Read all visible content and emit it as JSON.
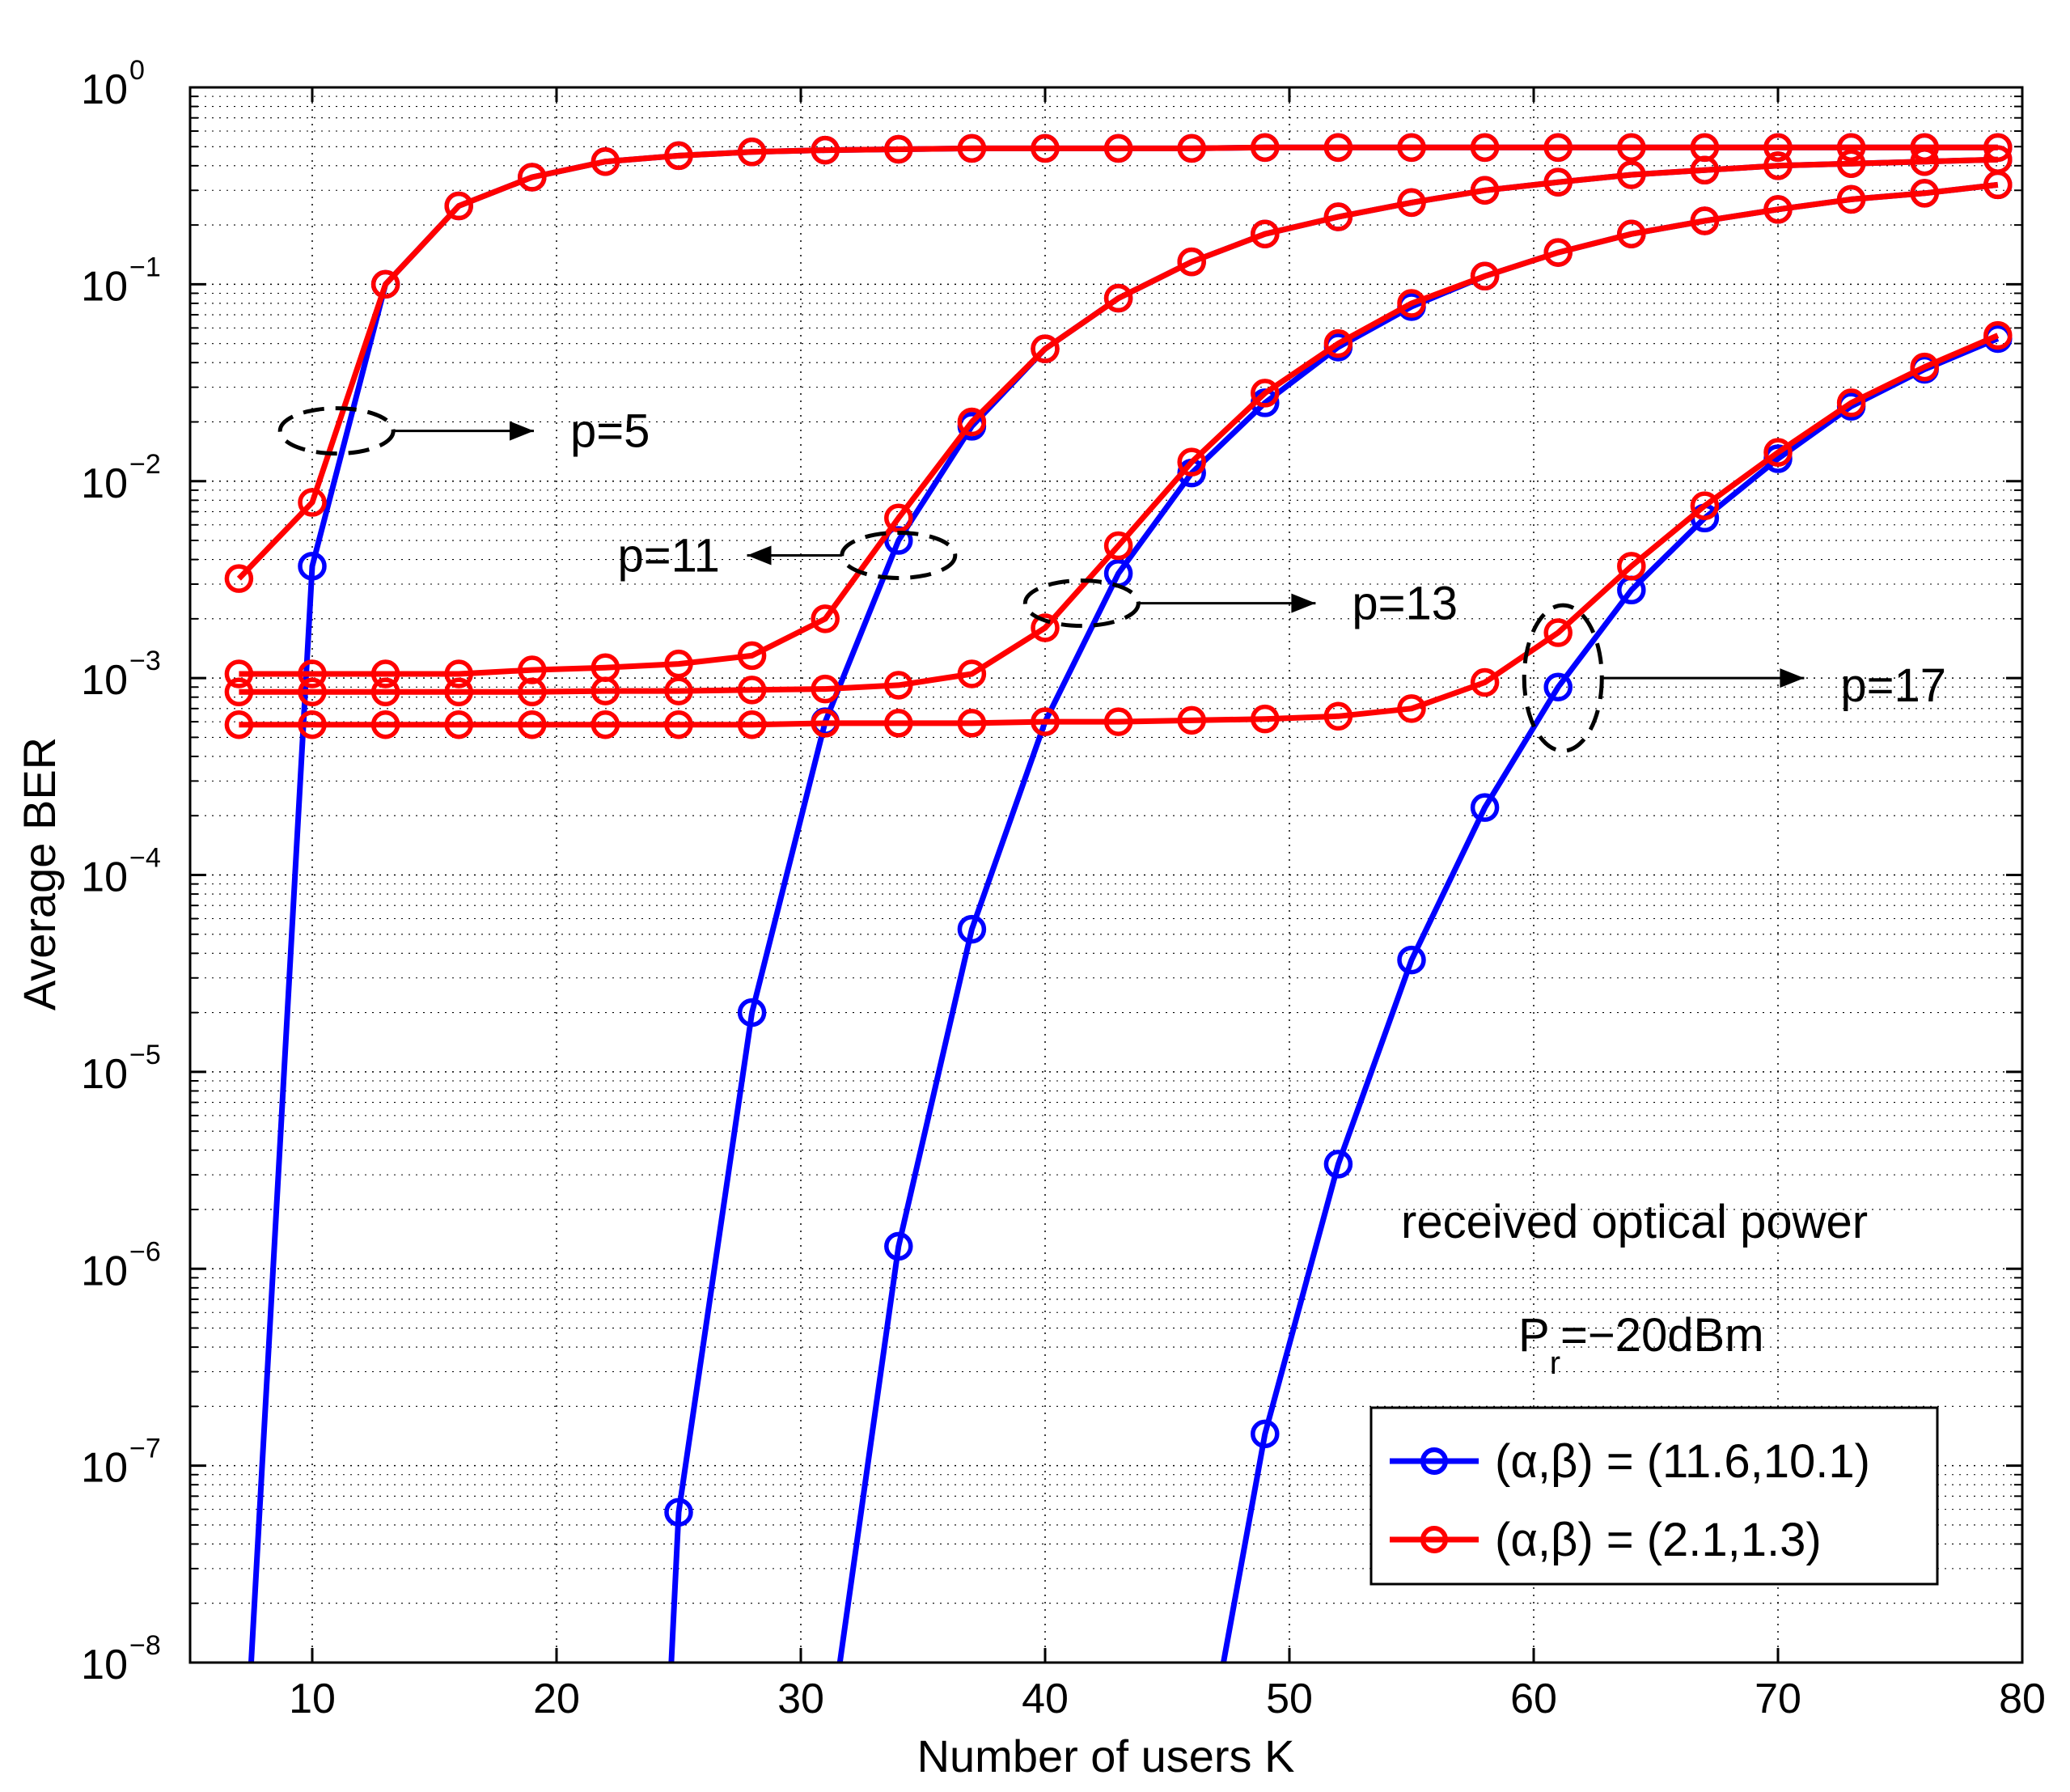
{
  "chart_data": {
    "type": "line",
    "title": "",
    "xlabel": "Number of users K",
    "ylabel": "Average BER",
    "xlim": [
      5,
      80
    ],
    "ylim": [
      1e-08,
      1
    ],
    "yscale": "log",
    "grid": true,
    "x_ticks": [
      10,
      20,
      30,
      40,
      50,
      60,
      70,
      80
    ],
    "y_ticks": [
      {
        "base": "10",
        "exp": "0",
        "value": 1
      },
      {
        "base": "10",
        "exp": "−1",
        "value": 0.1
      },
      {
        "base": "10",
        "exp": "−2",
        "value": 0.01
      },
      {
        "base": "10",
        "exp": "−3",
        "value": 0.001
      },
      {
        "base": "10",
        "exp": "−4",
        "value": 0.0001
      },
      {
        "base": "10",
        "exp": "−5",
        "value": 1e-05
      },
      {
        "base": "10",
        "exp": "−6",
        "value": 1e-06
      },
      {
        "base": "10",
        "exp": "−7",
        "value": 1e-07
      },
      {
        "base": "10",
        "exp": "−8",
        "value": 1e-08
      }
    ],
    "legend_position": "bottom-right",
    "series": [
      {
        "name": "(α,β) = (11.6,10.1)",
        "group": "p=5",
        "color": "#0000ff",
        "x": [
          7.5,
          10,
          13,
          16,
          19,
          22,
          25,
          28,
          31,
          34,
          37,
          40,
          43,
          46,
          49,
          52,
          55,
          58,
          61,
          64,
          67,
          70,
          73,
          76,
          79
        ],
        "y": [
          1e-08,
          0.0037,
          0.1,
          0.25,
          0.35,
          0.42,
          0.45,
          0.47,
          0.48,
          0.485,
          0.49,
          0.49,
          0.49,
          0.49,
          0.495,
          0.495,
          0.495,
          0.495,
          0.495,
          0.495,
          0.495,
          0.495,
          0.495,
          0.495,
          0.495
        ],
        "markers": [
          1,
          2,
          3,
          4,
          5,
          6,
          7,
          8,
          9,
          10,
          11,
          12,
          13,
          14,
          15,
          16,
          17,
          18,
          19,
          20,
          21,
          22,
          23,
          24
        ]
      },
      {
        "name": "(α,β) = (11.6,10.1)",
        "group": "p=11",
        "color": "#0000ff",
        "x": [
          24.7,
          25,
          28,
          31,
          34,
          37,
          40,
          43,
          46,
          49,
          52,
          55,
          58,
          61,
          64,
          67,
          70,
          73,
          76,
          79
        ],
        "y": [
          1e-08,
          5.8e-08,
          2e-05,
          0.0006,
          0.005,
          0.019,
          0.047,
          0.085,
          0.13,
          0.18,
          0.22,
          0.26,
          0.3,
          0.33,
          0.36,
          0.38,
          0.4,
          0.41,
          0.42,
          0.43
        ],
        "markers": [
          1,
          2,
          3,
          4,
          5,
          6,
          7,
          8,
          9,
          10,
          11,
          12,
          13,
          14,
          15,
          16,
          17,
          18,
          19
        ]
      },
      {
        "name": "(α,β) = (11.6,10.1)",
        "group": "p=13",
        "color": "#0000ff",
        "x": [
          31.6,
          34,
          37,
          40,
          43,
          46,
          49,
          52,
          55,
          58,
          61,
          64,
          67,
          70,
          73,
          76,
          79
        ],
        "y": [
          1e-08,
          1.3e-06,
          5.3e-05,
          0.0006,
          0.0034,
          0.011,
          0.025,
          0.048,
          0.077,
          0.11,
          0.145,
          0.18,
          0.21,
          0.24,
          0.27,
          0.29,
          0.32
        ],
        "markers": [
          1,
          2,
          3,
          4,
          5,
          6,
          7,
          8,
          9,
          10,
          11,
          12,
          13,
          14,
          15,
          16
        ]
      },
      {
        "name": "(α,β) = (11.6,10.1)",
        "group": "p=17",
        "color": "#0000ff",
        "x": [
          47.3,
          49,
          52,
          55,
          58,
          61,
          64,
          67,
          70,
          73,
          76,
          79
        ],
        "y": [
          1e-08,
          1.45e-07,
          3.4e-06,
          3.7e-05,
          0.00022,
          0.0009,
          0.0028,
          0.0065,
          0.013,
          0.024,
          0.037,
          0.053
        ],
        "markers": [
          1,
          2,
          3,
          4,
          5,
          6,
          7,
          8,
          9,
          10,
          11
        ]
      },
      {
        "name": "(α,β) = (2.1,1.3)",
        "group": "p=5",
        "color": "#ff0000",
        "x": [
          7,
          10,
          13,
          16,
          19,
          22,
          25,
          28,
          31,
          34,
          37,
          40,
          43,
          46,
          49,
          52,
          55,
          58,
          61,
          64,
          67,
          70,
          73,
          76,
          79
        ],
        "y": [
          0.0032,
          0.0078,
          0.1,
          0.25,
          0.35,
          0.42,
          0.45,
          0.47,
          0.48,
          0.485,
          0.49,
          0.49,
          0.49,
          0.49,
          0.495,
          0.495,
          0.495,
          0.495,
          0.495,
          0.495,
          0.495,
          0.495,
          0.495,
          0.495,
          0.495
        ],
        "markers": [
          0,
          1,
          2,
          3,
          4,
          5,
          6,
          7,
          8,
          9,
          10,
          11,
          12,
          13,
          14,
          15,
          16,
          17,
          18,
          19,
          20,
          21,
          22,
          23,
          24
        ]
      },
      {
        "name": "(α,β) = (2.1,1.3)",
        "group": "p=11",
        "color": "#ff0000",
        "x": [
          7,
          10,
          13,
          16,
          19,
          22,
          25,
          28,
          31,
          34,
          37,
          40,
          43,
          46,
          49,
          52,
          55,
          58,
          61,
          64,
          67,
          70,
          73,
          76,
          79
        ],
        "y": [
          0.00105,
          0.00105,
          0.00105,
          0.00105,
          0.0011,
          0.00113,
          0.00118,
          0.0013,
          0.002,
          0.0065,
          0.02,
          0.047,
          0.085,
          0.13,
          0.18,
          0.22,
          0.26,
          0.3,
          0.33,
          0.36,
          0.38,
          0.4,
          0.41,
          0.42,
          0.43
        ],
        "markers": [
          0,
          1,
          2,
          3,
          4,
          5,
          6,
          7,
          8,
          9,
          10,
          11,
          12,
          13,
          14,
          15,
          16,
          17,
          18,
          19,
          20,
          21,
          22,
          23,
          24
        ]
      },
      {
        "name": "(α,β) = (2.1,1.3)",
        "group": "p=13",
        "color": "#ff0000",
        "x": [
          7,
          10,
          13,
          16,
          19,
          22,
          25,
          28,
          31,
          34,
          37,
          40,
          43,
          46,
          49,
          52,
          55,
          58,
          61,
          64,
          67,
          70,
          73,
          76,
          79
        ],
        "y": [
          0.00085,
          0.00085,
          0.00085,
          0.00085,
          0.00085,
          0.00086,
          0.00086,
          0.00087,
          0.00088,
          0.00092,
          0.00105,
          0.0018,
          0.0047,
          0.0125,
          0.028,
          0.05,
          0.08,
          0.11,
          0.145,
          0.18,
          0.21,
          0.24,
          0.27,
          0.29,
          0.32
        ],
        "markers": [
          0,
          1,
          2,
          3,
          4,
          5,
          6,
          7,
          8,
          9,
          10,
          11,
          12,
          13,
          14,
          15,
          16,
          17,
          18,
          19,
          20,
          21,
          22,
          23,
          24
        ]
      },
      {
        "name": "(α,β) = (2.1,1.3)",
        "group": "p=17",
        "color": "#ff0000",
        "x": [
          7,
          10,
          13,
          16,
          19,
          22,
          25,
          28,
          31,
          34,
          37,
          40,
          43,
          46,
          49,
          52,
          55,
          58,
          61,
          64,
          67,
          70,
          73,
          76,
          79
        ],
        "y": [
          0.00058,
          0.00058,
          0.00058,
          0.00058,
          0.00058,
          0.00058,
          0.00058,
          0.00058,
          0.00059,
          0.00059,
          0.00059,
          0.0006,
          0.0006,
          0.00061,
          0.00062,
          0.00064,
          0.0007,
          0.00095,
          0.0017,
          0.0037,
          0.0075,
          0.014,
          0.025,
          0.038,
          0.055
        ],
        "markers": [
          0,
          1,
          2,
          3,
          4,
          5,
          6,
          7,
          8,
          9,
          10,
          11,
          12,
          13,
          14,
          15,
          16,
          17,
          18,
          19,
          20,
          21,
          22,
          23,
          24
        ]
      }
    ],
    "annotations": [
      {
        "id": "p5",
        "text": "p=5",
        "ellipse": {
          "x": 11,
          "y": 0.018
        },
        "arrow_dir": "right",
        "label_x": 20,
        "label_y": 0.018
      },
      {
        "id": "p11",
        "text": "p=11",
        "ellipse": {
          "x": 34,
          "y": 0.0042
        },
        "arrow_dir": "left",
        "label_x": 22.5,
        "label_y": 0.0042
      },
      {
        "id": "p13",
        "text": "p=13",
        "ellipse": {
          "x": 41.5,
          "y": 0.0024
        },
        "arrow_dir": "right",
        "label_x": 52,
        "label_y": 0.0024
      },
      {
        "id": "p17",
        "text": "p=17",
        "ellipse": {
          "x": 61.2,
          "y": 0.001
        },
        "arrow_dir": "right",
        "label_x": 72,
        "label_y": 0.00092
      }
    ],
    "text_notes": {
      "line1": "received optical power",
      "pr_prefix": "P",
      "pr_sub": "r",
      "pr_suffix": "=−20dBm"
    },
    "legend": [
      {
        "label": "(α,β) = (11.6,10.1)",
        "color": "#0000ff"
      },
      {
        "label": "(α,β) = (2.1,1.3)",
        "color": "#ff0000"
      }
    ]
  }
}
